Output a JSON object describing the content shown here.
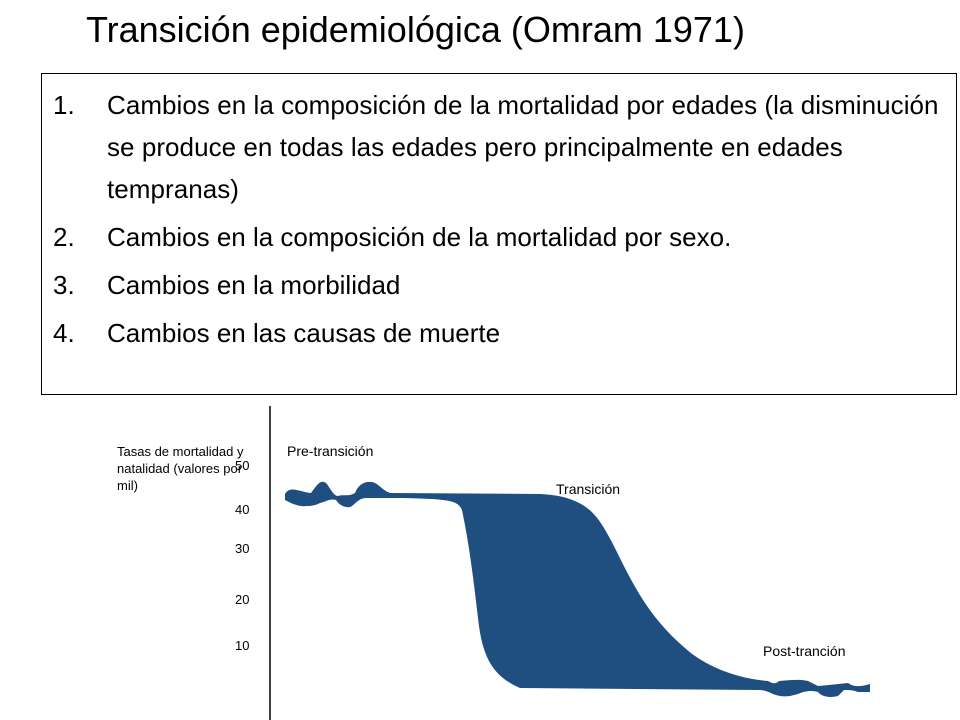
{
  "slide": {
    "title": "Transición epidemiológica (Omram 1971)",
    "items": [
      {
        "number": "1.",
        "text": "Cambios en la composición de la mortalidad por edades (la disminución se produce en todas las edades pero principalmente en edades tempranas)"
      },
      {
        "number": "2.",
        "text": "Cambios en la composición de la mortalidad por sexo."
      },
      {
        "number": "3.",
        "text": "Cambios en la morbilidad"
      },
      {
        "number": "4.",
        "text": "Cambios en las causas de muerte"
      }
    ]
  },
  "diagram": {
    "y_axis_label": "Tasas de mortalidad y natalidad (valores por mil)",
    "y_ticks": [
      "50",
      "40",
      "30",
      "20",
      "10"
    ],
    "stages": {
      "pre": "Pre-transición",
      "transition": "Transición",
      "post": "Post-tranción"
    },
    "band_color": "#1f4e80"
  }
}
